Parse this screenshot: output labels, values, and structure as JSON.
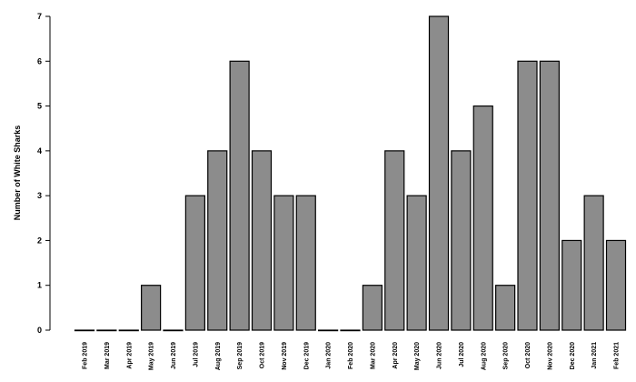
{
  "chart_data": {
    "type": "bar",
    "title": "",
    "xlabel": "",
    "ylabel": "Number of White Sharks",
    "ylim": [
      0,
      7
    ],
    "yticks": [
      0,
      1,
      2,
      3,
      4,
      5,
      6,
      7
    ],
    "grid": false,
    "categories": [
      "Feb 2019",
      "Mar 2019",
      "Apr 2019",
      "May 2019",
      "Jun 2019",
      "Jul 2019",
      "Aug 2019",
      "Sep 2019",
      "Oct 2019",
      "Nov 2019",
      "Dec 2019",
      "Jan 2020",
      "Feb 2020",
      "Mar 2020",
      "Apr 2020",
      "May 2020",
      "Jun 2020",
      "Jul 2020",
      "Aug 2020",
      "Sep 2020",
      "Oct 2020",
      "Nov 2020",
      "Dec 2020",
      "Jan 2021",
      "Feb 2021"
    ],
    "values": [
      0,
      0,
      0,
      1,
      0,
      3,
      4,
      6,
      4,
      3,
      3,
      0,
      0,
      1,
      4,
      3,
      7,
      4,
      5,
      1,
      6,
      6,
      2,
      3,
      2
    ],
    "colors": {
      "bar_fill": "#8c8c8c",
      "bar_stroke": "#000000"
    }
  }
}
